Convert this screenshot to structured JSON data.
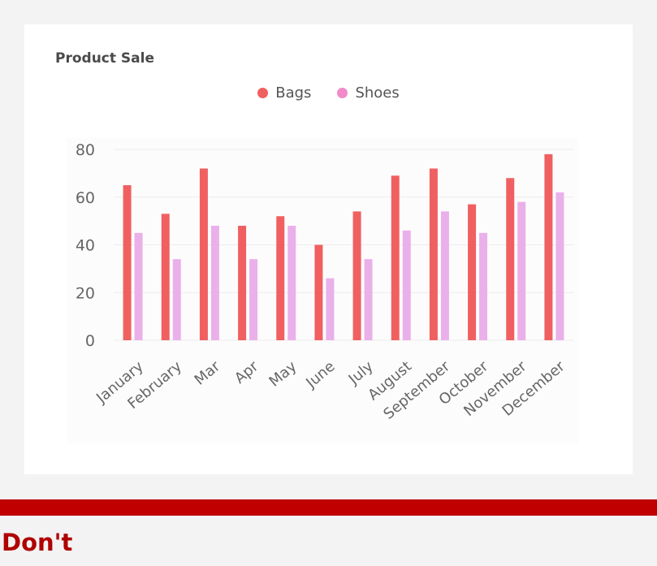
{
  "card": {
    "title": "Product Sale"
  },
  "chart_data": {
    "type": "bar",
    "title": "",
    "xlabel": "",
    "ylabel": "",
    "categories": [
      "January",
      "February",
      "Mar",
      "Apr",
      "May",
      "June",
      "July",
      "August",
      "September",
      "October",
      "November",
      "December"
    ],
    "series": [
      {
        "name": "Bags",
        "color": "#f06060",
        "values": [
          65,
          53,
          72,
          48,
          52,
          40,
          54,
          69,
          72,
          57,
          68,
          78
        ]
      },
      {
        "name": "Shoes",
        "color": "#eab0ea",
        "values": [
          45,
          34,
          48,
          34,
          48,
          26,
          34,
          46,
          54,
          45,
          58,
          62
        ]
      }
    ],
    "ylim": [
      0,
      80
    ],
    "yticks": [
      0,
      20,
      40,
      60,
      80
    ],
    "grid": true,
    "legend_position": "top-center",
    "legend_marker_colors": [
      "#f06060",
      "#f08ac8"
    ]
  },
  "banner": {
    "text": "Don't",
    "color": "#c00000"
  }
}
